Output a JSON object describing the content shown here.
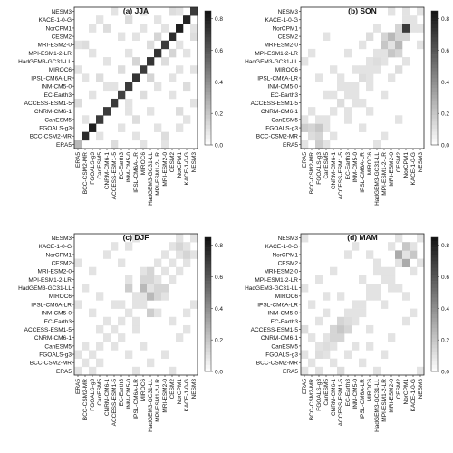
{
  "chart_data": {
    "type": "heatmap",
    "models": [
      "ERA5",
      "BCC-CSM2-MR",
      "FGOALS-g3",
      "CanESM5",
      "CNRM-CM6-1",
      "ACCESS-ESM1-5",
      "EC-Earth3",
      "INM-CM5-0",
      "IPSL-CM6A-LR",
      "MIROC6",
      "HadGEM3-GC31-LL",
      "MPI-ESM1-2-LR",
      "MRI-ESM2-0",
      "CESM2",
      "NorCPM1",
      "KACE-1-0-G",
      "NESM3"
    ],
    "colorbar": {
      "ticks": [
        0.0,
        0.2,
        0.4,
        0.6,
        0.8
      ],
      "tick_labels": [
        "0.0",
        "0.2",
        "0.4",
        "0.6",
        "0.8"
      ],
      "vmin": 0,
      "vmax": 0.85,
      "colors": [
        "#ffffff",
        "#111111"
      ]
    },
    "panels": [
      {
        "title": "(a) JJA",
        "diag": [
          0.25,
          0.75,
          0.8,
          0.7,
          0.7,
          0.7,
          0.68,
          0.7,
          0.72,
          0.7,
          0.72,
          0.72,
          0.7,
          0.75,
          0.8,
          0.78,
          0.7
        ],
        "off": [
          [
            0,
            5,
            0.12
          ],
          [
            0,
            9,
            0.1
          ],
          [
            0,
            12,
            0.1
          ],
          [
            1,
            3,
            0.1
          ],
          [
            1,
            12,
            0.12
          ],
          [
            2,
            6,
            0.1
          ],
          [
            2,
            14,
            0.1
          ],
          [
            3,
            8,
            0.12
          ],
          [
            3,
            15,
            0.1
          ],
          [
            4,
            10,
            0.1
          ],
          [
            4,
            14,
            0.12
          ],
          [
            5,
            7,
            0.1
          ],
          [
            5,
            16,
            0.1
          ],
          [
            6,
            9,
            0.12
          ],
          [
            6,
            13,
            0.1
          ],
          [
            7,
            11,
            0.1
          ],
          [
            7,
            15,
            0.12
          ],
          [
            8,
            10,
            0.15
          ],
          [
            8,
            13,
            0.1
          ],
          [
            9,
            14,
            0.1
          ],
          [
            9,
            16,
            0.1
          ],
          [
            10,
            12,
            0.12
          ],
          [
            11,
            13,
            0.15
          ],
          [
            11,
            15,
            0.1
          ],
          [
            12,
            14,
            0.1
          ],
          [
            13,
            16,
            0.12
          ],
          [
            14,
            16,
            0.1
          ],
          [
            1,
            8,
            0.1
          ],
          [
            2,
            11,
            0.1
          ],
          [
            4,
            7,
            0.1
          ]
        ]
      },
      {
        "title": "(b) SON",
        "diag": [
          0.1,
          0.12,
          0.2,
          0.1,
          0.1,
          0.12,
          0.1,
          0.1,
          0.12,
          0.1,
          0.12,
          0.1,
          0.1,
          0.15,
          0.7,
          0.1,
          0.1
        ],
        "off": [
          [
            2,
            0,
            0.18
          ],
          [
            2,
            1,
            0.15
          ],
          [
            3,
            2,
            0.1
          ],
          [
            11,
            12,
            0.2
          ],
          [
            12,
            13,
            0.25
          ],
          [
            13,
            14,
            0.15
          ],
          [
            11,
            13,
            0.15
          ],
          [
            10,
            11,
            0.1
          ],
          [
            6,
            7,
            0.1
          ],
          [
            8,
            9,
            0.1
          ],
          [
            15,
            14,
            0.1
          ],
          [
            0,
            3,
            0.1
          ],
          [
            1,
            4,
            0.1
          ],
          [
            4,
            6,
            0.1
          ],
          [
            5,
            7,
            0.1
          ],
          [
            7,
            9,
            0.1
          ],
          [
            9,
            10,
            0.1
          ],
          [
            9,
            13,
            0.12
          ],
          [
            10,
            14,
            0.1
          ],
          [
            14,
            16,
            0.1
          ],
          [
            3,
            6,
            0.1
          ],
          [
            5,
            8,
            0.1
          ],
          [
            0,
            10,
            0.1
          ],
          [
            12,
            16,
            0.1
          ],
          [
            6,
            11,
            0.1
          ],
          [
            2,
            8,
            0.1
          ],
          [
            4,
            9,
            0.1
          ],
          [
            8,
            12,
            0.1
          ],
          [
            1,
            11,
            0.1
          ],
          [
            3,
            13,
            0.1
          ]
        ]
      },
      {
        "title": "(c) DJF",
        "diag": [
          0.1,
          0.1,
          0.1,
          0.1,
          0.1,
          0.1,
          0.1,
          0.1,
          0.1,
          0.1,
          0.1,
          0.1,
          0.1,
          0.1,
          0.1,
          0.1,
          0.1
        ],
        "off": [
          [
            10,
            7,
            0.18
          ],
          [
            10,
            9,
            0.25
          ],
          [
            10,
            11,
            0.15
          ],
          [
            10,
            12,
            0.15
          ],
          [
            11,
            9,
            0.15
          ],
          [
            15,
            14,
            0.15
          ],
          [
            15,
            13,
            0.1
          ],
          [
            13,
            11,
            0.1
          ],
          [
            6,
            8,
            0.1
          ],
          [
            8,
            9,
            0.1
          ],
          [
            0,
            2,
            0.1
          ],
          [
            3,
            5,
            0.1
          ],
          [
            4,
            6,
            0.1
          ],
          [
            2,
            7,
            0.1
          ],
          [
            9,
            12,
            0.1
          ],
          [
            12,
            14,
            0.1
          ],
          [
            14,
            16,
            0.1
          ],
          [
            5,
            8,
            0.1
          ],
          [
            1,
            3,
            0.1
          ],
          [
            7,
            11,
            0.1
          ],
          [
            3,
            9,
            0.1
          ],
          [
            6,
            13,
            0.1
          ],
          [
            0,
            8,
            0.1
          ],
          [
            2,
            12,
            0.1
          ],
          [
            5,
            15,
            0.1
          ],
          [
            1,
            10,
            0.1
          ],
          [
            4,
            14,
            0.1
          ],
          [
            8,
            16,
            0.1
          ],
          [
            0,
            13,
            0.1
          ],
          [
            7,
            15,
            0.1
          ]
        ]
      },
      {
        "title": "(d) MAM",
        "diag": [
          0.1,
          0.1,
          0.12,
          0.12,
          0.15,
          0.2,
          0.12,
          0.1,
          0.1,
          0.1,
          0.1,
          0.1,
          0.1,
          0.1,
          0.1,
          0.1,
          0.1
        ],
        "off": [
          [
            14,
            13,
            0.3
          ],
          [
            15,
            14,
            0.2
          ],
          [
            4,
            5,
            0.15
          ],
          [
            5,
            6,
            0.15
          ],
          [
            6,
            7,
            0.1
          ],
          [
            3,
            4,
            0.1
          ],
          [
            2,
            3,
            0.1
          ],
          [
            0,
            5,
            0.12
          ],
          [
            7,
            8,
            0.1
          ],
          [
            9,
            10,
            0.1
          ],
          [
            11,
            12,
            0.1
          ],
          [
            0,
            2,
            0.1
          ],
          [
            1,
            4,
            0.1
          ],
          [
            12,
            15,
            0.1
          ],
          [
            10,
            13,
            0.1
          ],
          [
            2,
            6,
            0.1
          ],
          [
            8,
            11,
            0.1
          ],
          [
            13,
            16,
            0.1
          ],
          [
            1,
            8,
            0.1
          ],
          [
            3,
            9,
            0.1
          ],
          [
            4,
            12,
            0.1
          ],
          [
            6,
            14,
            0.1
          ],
          [
            0,
            10,
            0.1
          ],
          [
            7,
            15,
            0.1
          ],
          [
            2,
            11,
            0.1
          ],
          [
            5,
            9,
            0.1
          ],
          [
            0,
            16,
            0.1
          ],
          [
            9,
            14,
            0.1
          ],
          [
            3,
            7,
            0.1
          ],
          [
            10,
            12,
            0.1
          ]
        ]
      }
    ]
  }
}
